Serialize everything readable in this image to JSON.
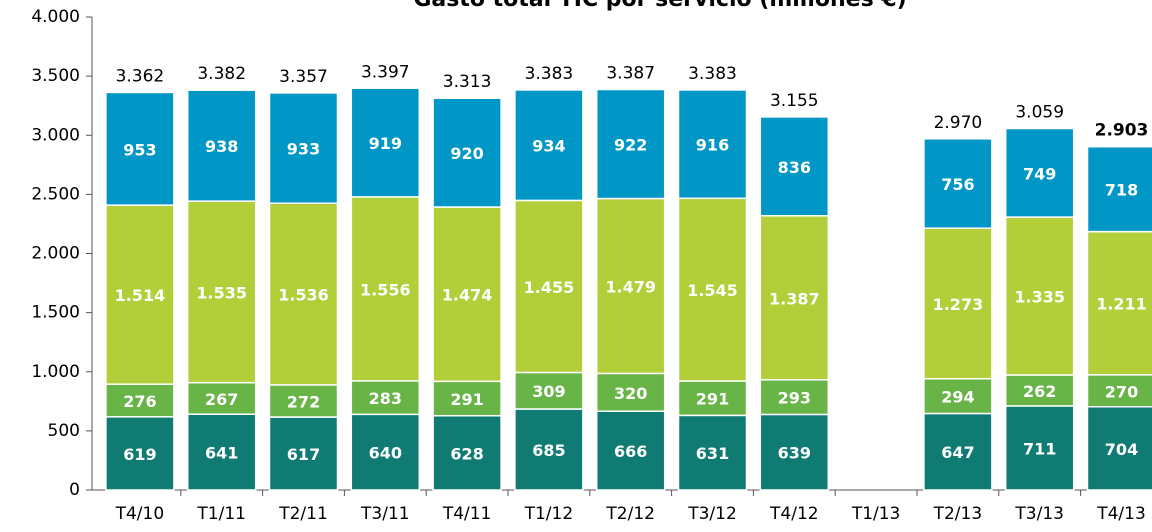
{
  "chart_data": {
    "type": "stacked_bar",
    "title": "Gasto total TIC por servicio (millones €)",
    "categories": [
      "T4/10",
      "T1/11",
      "T2/11",
      "T3/11",
      "T4/11",
      "T1/12",
      "T2/12",
      "T3/12",
      "T4/12",
      "T1/13",
      "T2/13",
      "T3/13",
      "T4/13"
    ],
    "series": [
      {
        "color": "#0f7b73",
        "values": [
          619,
          641,
          617,
          640,
          628,
          685,
          666,
          631,
          639,
          null,
          647,
          711,
          704
        ]
      },
      {
        "color": "#69b446",
        "values": [
          276,
          267,
          272,
          283,
          291,
          309,
          320,
          291,
          293,
          null,
          294,
          262,
          270
        ]
      },
      {
        "color": "#b2cf3a",
        "values": [
          1514,
          1535,
          1536,
          1556,
          1474,
          1455,
          1479,
          1545,
          1387,
          null,
          1273,
          1335,
          1211
        ],
        "value_labels": [
          "1.514",
          "1.535",
          "1.536",
          "1.556",
          "1.474",
          "1.455",
          "1.479",
          "1.545",
          "1.387",
          null,
          "1.273",
          "1.335",
          "1.211"
        ]
      },
      {
        "color": "#0096c6",
        "values": [
          953,
          938,
          933,
          919,
          920,
          934,
          922,
          916,
          836,
          null,
          756,
          749,
          718
        ]
      }
    ],
    "totals": {
      "values": [
        3362,
        3382,
        3357,
        3397,
        3313,
        3383,
        3387,
        3383,
        3155,
        null,
        2970,
        3059,
        2903
      ],
      "value_labels": [
        "3.362",
        "3.382",
        "3.357",
        "3.397",
        "3.313",
        "3.383",
        "3.387",
        "3.383",
        "3.155",
        null,
        "2.970",
        "3.059",
        "2.903"
      ]
    },
    "ylim": [
      0,
      4000
    ],
    "yticks": [
      0,
      500,
      {
        "value": 1000,
        "label": "1.000"
      },
      {
        "value": 1500,
        "label": "1.500"
      },
      {
        "value": 2000,
        "label": "2.000"
      },
      {
        "value": 2500,
        "label": "2.500"
      },
      {
        "value": 3000,
        "label": "3.000"
      },
      {
        "value": 3500,
        "label": "3.500"
      },
      {
        "value": 4000,
        "label": "4.000"
      }
    ]
  }
}
